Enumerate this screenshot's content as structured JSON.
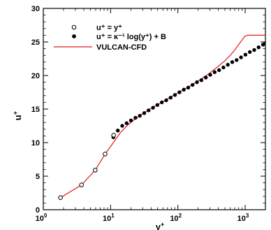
{
  "chart_data": {
    "type": "scatter",
    "xscale": "log",
    "xlim": [
      1,
      2000
    ],
    "ylim": [
      0,
      30
    ],
    "xlabel": "y",
    "xlabel_sup": "+",
    "ylabel": "u",
    "ylabel_sup": "+",
    "grid": false,
    "legend_position": "top-left",
    "x_ticks": [
      {
        "value": 1,
        "base": "10",
        "exp": "0"
      },
      {
        "value": 10,
        "base": "10",
        "exp": "1"
      },
      {
        "value": 100,
        "base": "10",
        "exp": "2"
      },
      {
        "value": 1000,
        "base": "10",
        "exp": "3"
      }
    ],
    "y_ticks": [
      {
        "value": 0,
        "label": "0"
      },
      {
        "value": 5,
        "label": "5"
      },
      {
        "value": 10,
        "label": "10"
      },
      {
        "value": 15,
        "label": "15"
      },
      {
        "value": 20,
        "label": "20"
      },
      {
        "value": 25,
        "label": "25"
      },
      {
        "value": 30,
        "label": "30"
      }
    ],
    "legend": [
      {
        "series": 0,
        "text": "u⁺ = y⁺"
      },
      {
        "series": 1,
        "text": "u⁺ = κ⁻¹ log(y⁺) + B"
      },
      {
        "series": 2,
        "text": "VULCAN-CFD"
      }
    ],
    "series": [
      {
        "name": "u⁺ = y⁺",
        "marker": "open-circle",
        "color": "#000000",
        "x": [
          1.8,
          3.7,
          5.9,
          8.3,
          11.1
        ],
        "y": [
          1.8,
          3.7,
          5.9,
          8.3,
          11.1
        ]
      },
      {
        "name": "u⁺ = κ⁻¹ log(y⁺) + B",
        "marker": "filled-circle",
        "color": "#000000",
        "x": [
          11,
          12.8,
          14.9,
          17.3,
          20.1,
          23.4,
          27.2,
          31.6,
          36.7,
          42.7,
          49.6,
          57.7,
          67.1,
          78,
          90.6,
          105.4,
          122.5,
          142.4,
          165.5,
          192.4,
          223.7,
          260.1,
          302.4,
          351.5,
          408.6,
          475.1,
          552.3,
          642.1,
          746.4,
          867.8,
          1008.8,
          1172.9,
          1363.4,
          1585,
          1842.8,
          2000
        ],
        "y": [
          10.8,
          11.8,
          12.5,
          12.9,
          13.3,
          13.7,
          14.0,
          14.4,
          14.8,
          15.2,
          15.6,
          16.0,
          16.3,
          16.7,
          17.1,
          17.5,
          17.9,
          18.2,
          18.6,
          19.0,
          19.3,
          19.7,
          20.1,
          20.5,
          20.8,
          21.2,
          21.6,
          22.0,
          22.3,
          22.7,
          23.1,
          23.5,
          23.8,
          24.2,
          24.6,
          24.8
        ]
      },
      {
        "name": "VULCAN-CFD",
        "marker": "line",
        "color": "#e41a1c",
        "x": [
          1.8,
          3.7,
          5.9,
          8.3,
          11,
          14,
          18,
          23,
          30,
          40,
          55,
          75,
          100,
          150,
          200,
          300,
          400,
          500,
          600,
          700,
          800,
          900,
          1000,
          1100,
          2000
        ],
        "y": [
          1.8,
          3.7,
          5.9,
          8.3,
          10.0,
          11.5,
          12.6,
          13.5,
          14.3,
          15.1,
          15.9,
          16.7,
          17.4,
          18.4,
          19.2,
          20.4,
          21.4,
          22.2,
          23.0,
          23.8,
          24.6,
          25.3,
          25.9,
          26.0,
          26.0
        ]
      }
    ]
  }
}
